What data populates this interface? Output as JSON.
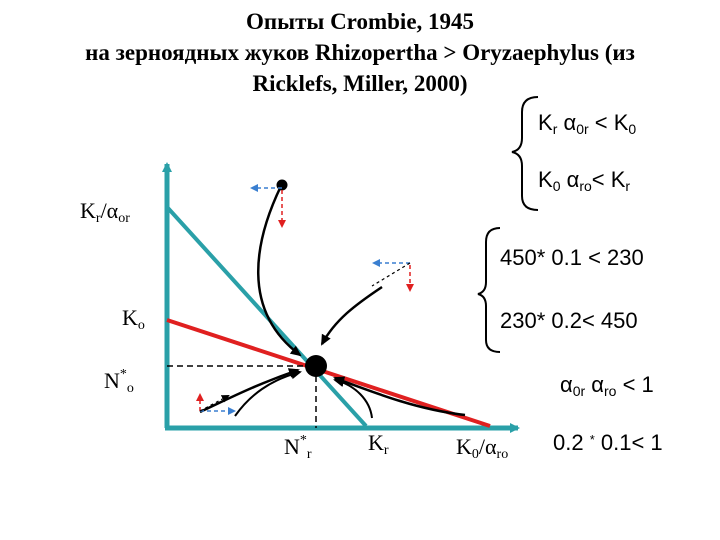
{
  "title": {
    "line1": "Опыты Crombie, 1945",
    "line2": "на зерноядных жуков Rhizopertha > Oryzaephylus (из",
    "line3": "Ricklefs, Miller, 2000)"
  },
  "axes": {
    "y_top": "Kr/αor",
    "y_mid": "Ko",
    "y_eq": "N*o",
    "x_eq": "N*r",
    "x_mid": "Kr",
    "x_end": "K0/αro"
  },
  "conditions_general": [
    "Kr α0r < K0",
    "K0 αro< Kr"
  ],
  "conditions_numeric": [
    "450* 0.1 < 230",
    "230* 0.2< 450"
  ],
  "alpha_product": "α0r αro < 1",
  "alpha_numeric": "0.2 * 0.1< 1",
  "colors": {
    "axis": "#2aa0a8",
    "kr_isocline": "#2aa0a8",
    "ko_isocline": "#e02020",
    "arrow_dx": "#3a7fd0",
    "arrow_dy": "#e02020",
    "equilibrium": "#000000"
  }
}
